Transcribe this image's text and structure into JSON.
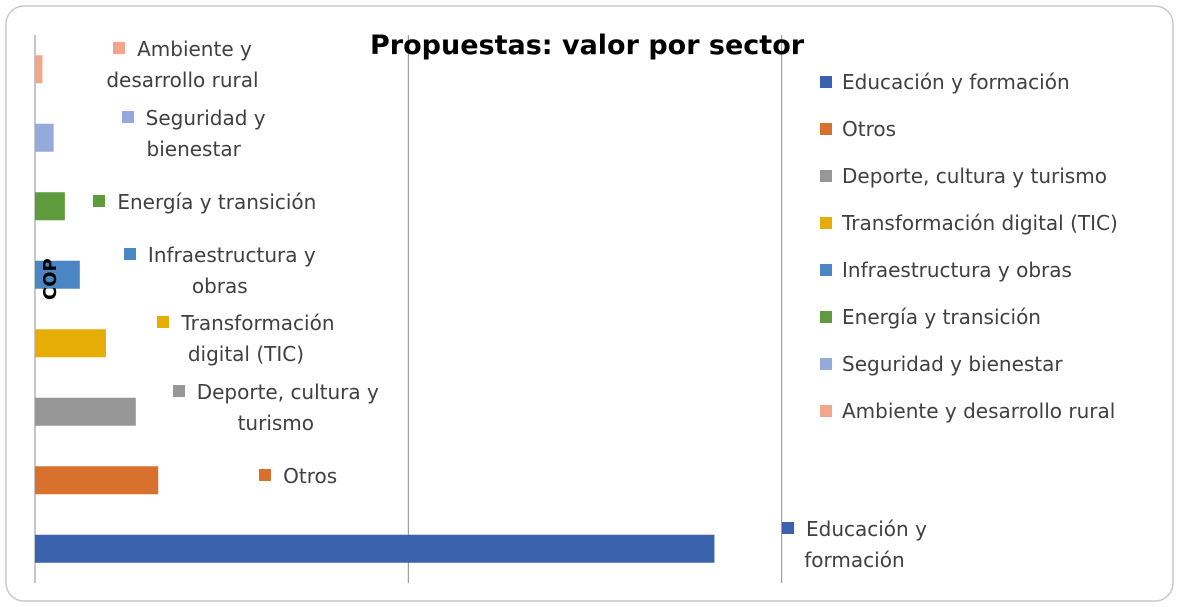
{
  "chart_data": {
    "type": "barh",
    "title": "Propuestas: valor por sector",
    "y_label": "COP",
    "categories": [
      "Educación y formación",
      "Otros",
      "Deporte, cultura y turismo",
      "Transformación digital (TIC)",
      "Infraestructura y obras",
      "Energía y transición",
      "Seguridad y bienestar",
      "Ambiente y desarrollo rural"
    ],
    "values": [
      1.82,
      0.33,
      0.27,
      0.19,
      0.12,
      0.08,
      0.05,
      0.02
    ],
    "colors": [
      "#3a62ad",
      "#d8702e",
      "#979797",
      "#e6ad06",
      "#4a86c3",
      "#5d9b3d",
      "#96a9db",
      "#f2a68b"
    ],
    "xlim": [
      0,
      3
    ],
    "xticks": [
      0,
      1,
      2
    ],
    "grid": true,
    "legend": "right"
  }
}
